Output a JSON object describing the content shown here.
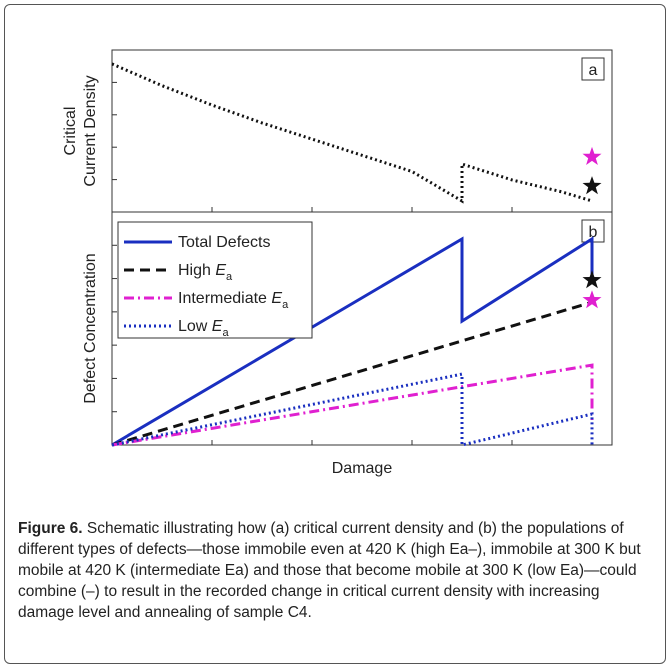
{
  "chart_data": [
    {
      "type": "line",
      "ylabel": [
        "Critical",
        "Current Density"
      ],
      "panel": "a",
      "xlim": [
        0,
        10
      ],
      "ylim": [
        0,
        5
      ],
      "xticks": [
        0,
        2,
        4,
        6,
        8,
        10
      ],
      "yticks": [
        0,
        1,
        2,
        3,
        4,
        5
      ],
      "series": [
        {
          "color": "#111111",
          "style": "dotted",
          "x": [
            0,
            1,
            2,
            3,
            4,
            5,
            6,
            7,
            7,
            8,
            9,
            9.6
          ],
          "values": [
            4.57,
            3.9,
            3.3,
            2.75,
            2.25,
            1.75,
            1.25,
            0.34,
            1.48,
            0.99,
            0.62,
            0.34
          ]
        },
        {
          "color": "#e020d0",
          "style": "star",
          "x": [
            9.6
          ],
          "values": [
            1.7
          ]
        },
        {
          "color": "#111111",
          "style": "star",
          "x": [
            9.6
          ],
          "values": [
            0.8
          ]
        }
      ]
    },
    {
      "type": "line",
      "ylabel": [
        "Defect Concentration"
      ],
      "xlabel": "Damage",
      "panel": "b",
      "xlim": [
        0,
        10
      ],
      "ylim": [
        0,
        7
      ],
      "xticks": [
        0,
        2,
        4,
        6,
        8,
        10
      ],
      "yticks": [
        0,
        1,
        2,
        3,
        4,
        5,
        6,
        7
      ],
      "series": [
        {
          "name": "Total Defects",
          "color": "#1a2fc0",
          "style": "solid",
          "x": [
            0,
            7,
            7,
            9.6,
            9.6
          ],
          "values": [
            0,
            6.19,
            3.72,
            6.19,
            4.95
          ]
        },
        {
          "name": "High Ea",
          "color": "#111111",
          "style": "dashed",
          "x": [
            0,
            9.6
          ],
          "values": [
            0,
            4.29
          ]
        },
        {
          "name": "Intermediate Ea",
          "color": "#e020d0",
          "style": "dashdot",
          "x": [
            0,
            9.6,
            9.6
          ],
          "values": [
            0,
            2.4,
            0.75
          ]
        },
        {
          "name": "Low Ea",
          "color": "#1a2fc0",
          "style": "dotted",
          "x": [
            0,
            7,
            7,
            9.6,
            9.6
          ],
          "values": [
            0,
            2.13,
            0,
            0.93,
            0
          ]
        },
        {
          "color": "#111111",
          "style": "star",
          "x": [
            9.6
          ],
          "values": [
            4.95
          ]
        },
        {
          "color": "#e020d0",
          "style": "star",
          "x": [
            9.6
          ],
          "values": [
            4.35
          ]
        }
      ]
    }
  ],
  "caption": {
    "label": "Figure 6.",
    "text": "Schematic illustrating how (a) critical current density and (b) the populations of different types of defects—those immobile even at 420 K (high Ea–), immobile at 300 K but mobile at 420 K (intermediate Ea) and those that become mobile at 300 K (low Ea)—could combine (–) to result in the recorded change in critical current density with increasing damage level and annealing of sample C4."
  }
}
